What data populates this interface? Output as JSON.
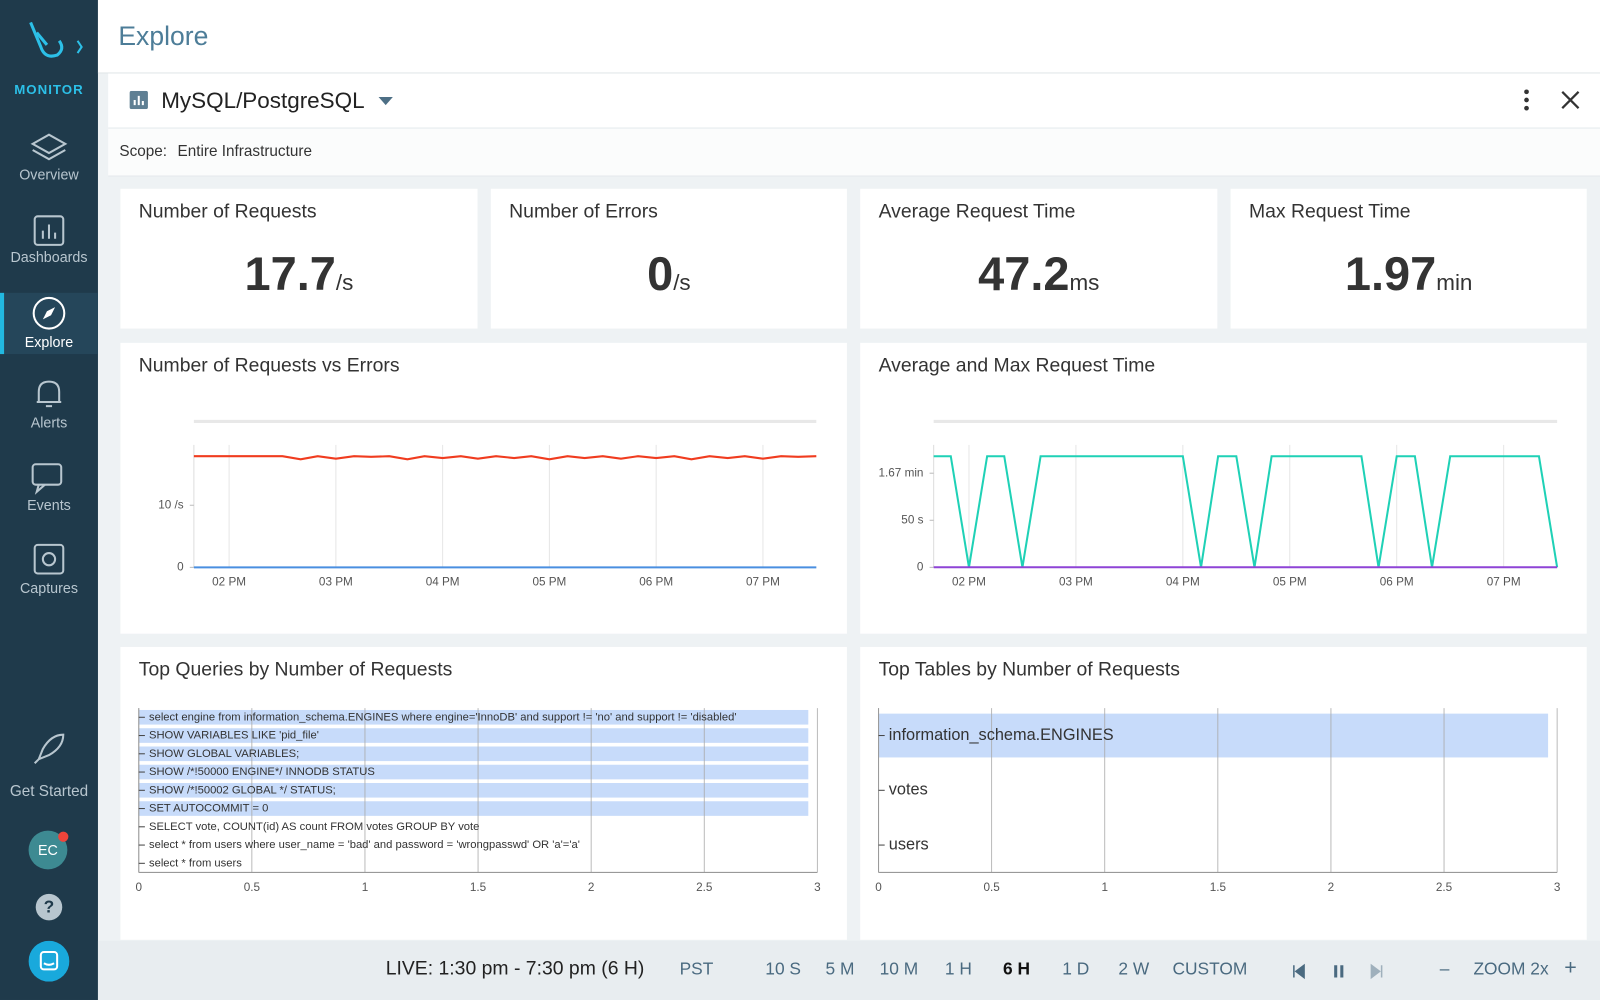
{
  "sidebar": {
    "brand": "MONITOR",
    "items": [
      "Overview",
      "Dashboards",
      "Explore",
      "Alerts",
      "Events",
      "Captures"
    ],
    "active_item": 2,
    "get_started": "Get Started",
    "avatar": "EC"
  },
  "header": {
    "title": "Explore"
  },
  "panel": {
    "title": "MySQL/PostgreSQL",
    "scope_label": "Scope:",
    "scope": "Entire Infrastructure"
  },
  "kpis": [
    {
      "title": "Number of Requests",
      "value": 17.7,
      "unit": "/s"
    },
    {
      "title": "Number of Errors",
      "value": 0,
      "unit": "/s"
    },
    {
      "title": "Average Request Time",
      "value": 47.2,
      "unit": "ms"
    },
    {
      "title": "Max Request Time",
      "value": 1.97,
      "unit": "min"
    }
  ],
  "charts": [
    {
      "type": "line",
      "title": "Number of Requests vs Errors",
      "x": [
        13.67,
        13.83,
        14,
        14.17,
        14.33,
        14.5,
        14.67,
        14.83,
        15,
        15.17,
        15.33,
        15.5,
        15.67,
        15.83,
        16,
        16.17,
        16.33,
        16.5,
        16.67,
        16.83,
        17,
        17.17,
        17.33,
        17.5,
        17.67,
        17.83,
        18,
        18.17,
        18.33,
        18.5,
        18.67,
        18.83,
        19,
        19.17,
        19.33,
        19.5
      ],
      "xlim": [
        13.67,
        19.5
      ],
      "xticks": [
        {
          "value": 14,
          "label": "02 PM"
        },
        {
          "value": 15,
          "label": "03 PM"
        },
        {
          "value": 16,
          "label": "04 PM"
        },
        {
          "value": 17,
          "label": "05 PM"
        },
        {
          "value": 18,
          "label": "06 PM"
        },
        {
          "value": 19,
          "label": "07 PM"
        }
      ],
      "ylim": [
        0,
        23.5
      ],
      "yticks": [
        0,
        {
          "value": 10,
          "label": "10 /s"
        }
      ],
      "series": [
        {
          "color": "#f03c1f",
          "values": [
            17.9,
            17.9,
            17.9,
            17.9,
            17.9,
            17.9,
            17.4,
            17.9,
            17.5,
            17.9,
            17.8,
            17.9,
            17.4,
            17.9,
            17.6,
            17.9,
            17.5,
            17.9,
            17.6,
            17.9,
            17.4,
            17.9,
            17.6,
            17.9,
            17.5,
            17.9,
            17.6,
            17.9,
            17.4,
            17.9,
            17.6,
            17.9,
            17.5,
            17.9,
            17.8,
            17.9
          ]
        },
        {
          "color": "#4a8fe0",
          "values": [
            0,
            0,
            0,
            0,
            0,
            0,
            0,
            0,
            0,
            0,
            0,
            0,
            0,
            0,
            0,
            0,
            0,
            0,
            0,
            0,
            0,
            0,
            0,
            0,
            0,
            0,
            0,
            0,
            0,
            0,
            0,
            0,
            0,
            0,
            0,
            0
          ]
        }
      ]
    },
    {
      "type": "line",
      "title": "Average and Max Request Time",
      "x": [
        13.67,
        13.83,
        14,
        14.17,
        14.33,
        14.5,
        14.67,
        14.83,
        15,
        15.17,
        15.33,
        15.5,
        15.67,
        15.83,
        16,
        16.17,
        16.33,
        16.5,
        16.67,
        16.83,
        17,
        17.17,
        17.33,
        17.5,
        17.67,
        17.83,
        18,
        18.17,
        18.33,
        18.5,
        18.67,
        18.83,
        19,
        19.17,
        19.33,
        19.5
      ],
      "xlim": [
        13.67,
        19.5
      ],
      "xticks": [
        {
          "value": 14,
          "label": "02 PM"
        },
        {
          "value": 15,
          "label": "03 PM"
        },
        {
          "value": 16,
          "label": "04 PM"
        },
        {
          "value": 17,
          "label": "05 PM"
        },
        {
          "value": 18,
          "label": "06 PM"
        },
        {
          "value": 19,
          "label": "07 PM"
        }
      ],
      "ylim": [
        0,
        155
      ],
      "yticks": [
        0,
        {
          "value": 50,
          "label": "50 s"
        },
        {
          "value": 100,
          "label": "1.67 min"
        }
      ],
      "series": [
        {
          "color": "#1fd1b6",
          "values": [
            118,
            118,
            0,
            118,
            118,
            0,
            118,
            118,
            118,
            118,
            118,
            118,
            118,
            118,
            118,
            0,
            118,
            118,
            0,
            118,
            118,
            118,
            118,
            118,
            118,
            0,
            118,
            118,
            0,
            118,
            118,
            118,
            118,
            118,
            118,
            0
          ]
        },
        {
          "color": "#8e44d6",
          "values": [
            0.05,
            0.05,
            0.05,
            0.05,
            0.05,
            0.05,
            0.05,
            0.05,
            0.05,
            0.05,
            0.05,
            0.05,
            0.05,
            0.05,
            0.05,
            0.05,
            0.05,
            0.05,
            0.05,
            0.05,
            0.05,
            0.05,
            0.05,
            0.05,
            0.05,
            0.05,
            0.05,
            0.05,
            0.05,
            0.05,
            0.05,
            0.05,
            0.05,
            0.05,
            0.05,
            0.05
          ]
        }
      ]
    },
    {
      "type": "hbar",
      "title": "Top Queries by Number of Requests",
      "color": "#c7dbfa",
      "categories": [
        "select engine from information_schema.ENGINES where engine='InnoDB' and support != 'no' and support != 'disabled'",
        "SHOW VARIABLES LIKE 'pid_file'",
        "SHOW GLOBAL VARIABLES;",
        "SHOW /*!50000 ENGINE*/ INNODB STATUS",
        "SHOW /*!50002 GLOBAL */ STATUS;",
        "SET AUTOCOMMIT = 0",
        "SELECT vote, COUNT(id) AS count FROM votes GROUP BY vote",
        "select * from users where user_name = 'bad' and password = 'wrongpasswd' OR 'a'='a'",
        "select * from users"
      ],
      "values": [
        2.96,
        2.96,
        2.96,
        2.96,
        2.96,
        2.96,
        0,
        0,
        0
      ],
      "xlim": [
        0,
        3
      ],
      "xticks": [
        0,
        0.5,
        1,
        1.5,
        2,
        2.5,
        3
      ]
    },
    {
      "type": "hbar",
      "title": "Top Tables by Number of Requests",
      "color": "#c7dbfa",
      "categories": [
        "information_schema.ENGINES",
        "votes",
        "users"
      ],
      "values": [
        2.96,
        0,
        0
      ],
      "xlim": [
        0,
        3
      ],
      "xticks": [
        0,
        0.5,
        1,
        1.5,
        2,
        2.5,
        3
      ]
    }
  ],
  "timebar": {
    "live": "LIVE: 1:30 pm - 7:30 pm (6 H)",
    "timezone": "PST",
    "ranges": [
      "10 S",
      "5 M",
      "10 M",
      "1 H",
      "6 H",
      "1 D",
      "2 W",
      "CUSTOM"
    ],
    "active_range": 4,
    "zoom_out": "–",
    "zoom": "ZOOM 2x",
    "zoom_in": "+"
  }
}
